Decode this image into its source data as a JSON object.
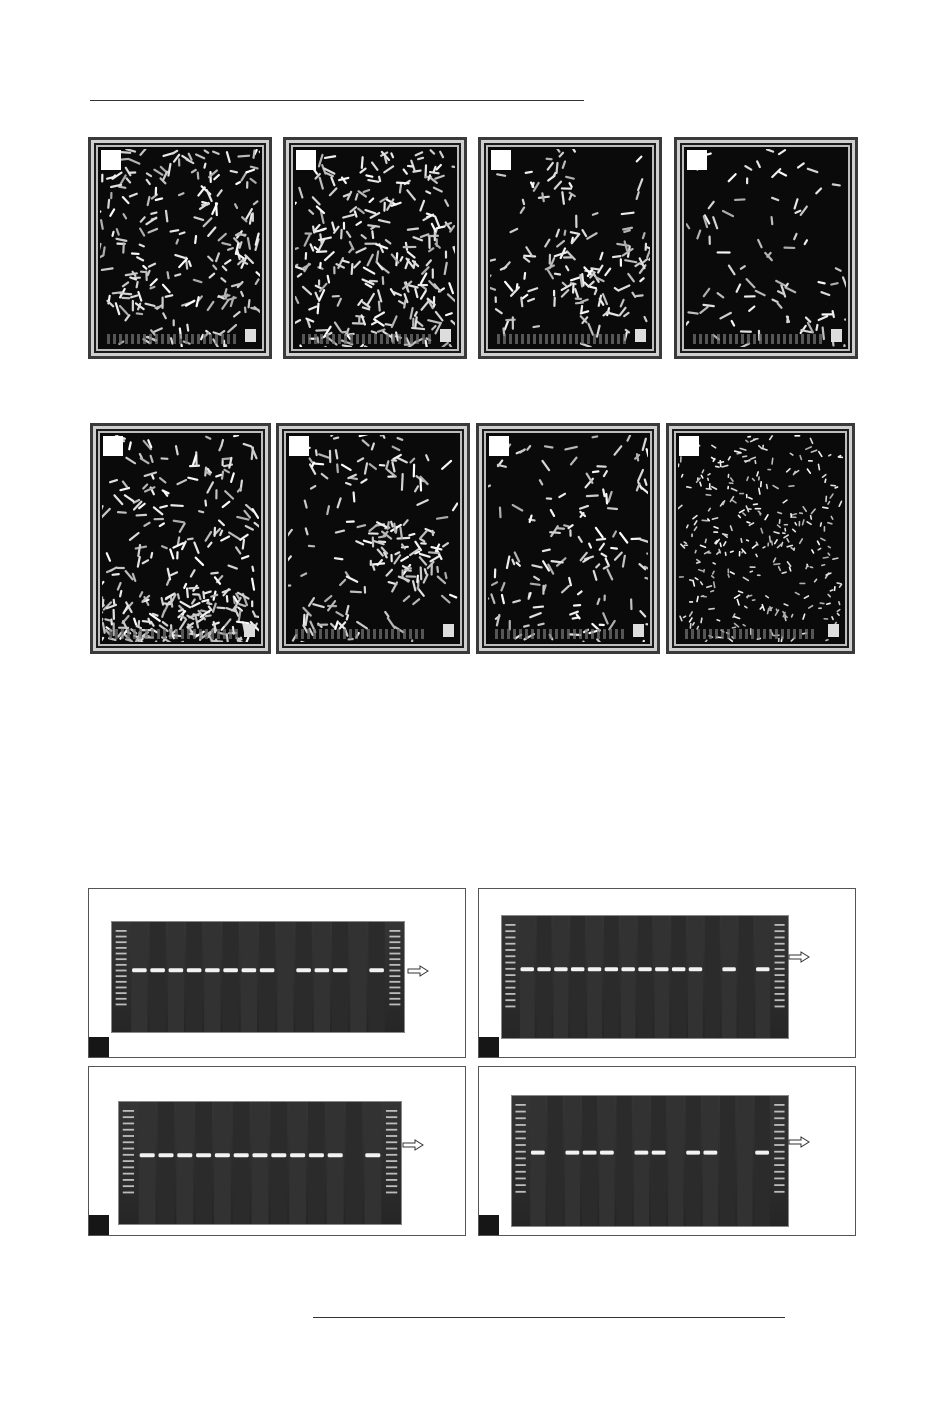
{
  "sem_panels": [
    {
      "id": "sem-1",
      "density": 220,
      "style": "rods"
    },
    {
      "id": "sem-2",
      "density": 260,
      "style": "dense"
    },
    {
      "id": "sem-3",
      "density": 170,
      "style": "clusters"
    },
    {
      "id": "sem-4",
      "density": 80,
      "style": "sparse"
    },
    {
      "id": "sem-5",
      "density": 280,
      "style": "dense"
    },
    {
      "id": "sem-6",
      "density": 190,
      "style": "clusters"
    },
    {
      "id": "sem-7",
      "density": 130,
      "style": "rods"
    },
    {
      "id": "sem-8",
      "density": 300,
      "style": "speckle"
    }
  ],
  "gel_panels": [
    {
      "id": "gel-1",
      "lanes": [
        1,
        1,
        1,
        1,
        1,
        1,
        1,
        1,
        0,
        1,
        1,
        1,
        0,
        1
      ]
    },
    {
      "id": "gel-2",
      "lanes": [
        1,
        1,
        1,
        1,
        1,
        1,
        1,
        1,
        1,
        1,
        1,
        0,
        1,
        0,
        1
      ]
    },
    {
      "id": "gel-3",
      "lanes": [
        1,
        1,
        1,
        1,
        1,
        1,
        1,
        1,
        1,
        1,
        1,
        0,
        1
      ]
    },
    {
      "id": "gel-4",
      "lanes": [
        1,
        0,
        1,
        1,
        1,
        0,
        1,
        1,
        0,
        1,
        1,
        0,
        0,
        1
      ]
    }
  ],
  "colors": {
    "gel_bg": "#2e2e2e",
    "band": "#f2f2f2",
    "sem_bg": "#0a0a0a"
  }
}
